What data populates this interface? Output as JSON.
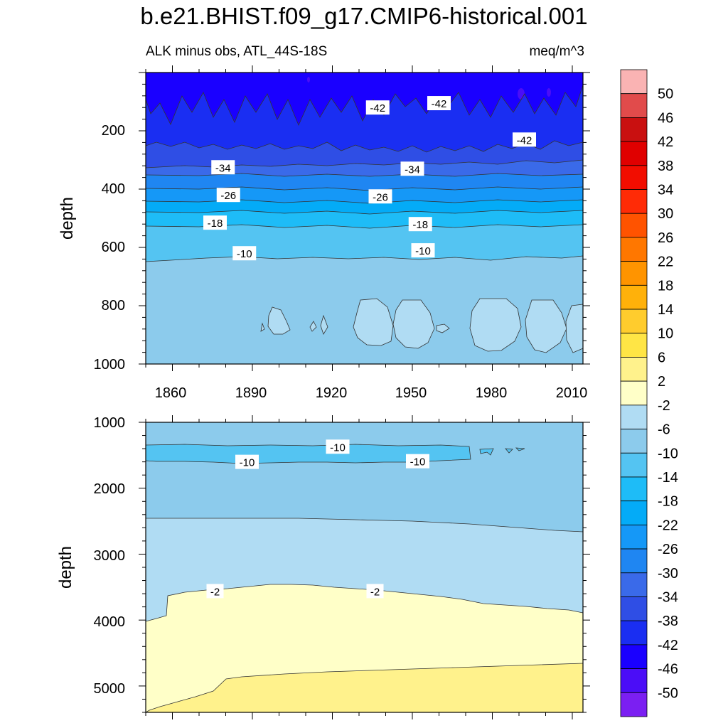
{
  "title": "b.e21.BHIST.f09_g17.CMIP6-historical.001",
  "subtitle_left": "ALK minus obs, ATL_44S-18S",
  "subtitle_right": "meq/m^3",
  "colors": {
    "colorbar": [
      "#7b1ff2",
      "#4b0df7",
      "#1a00ff",
      "#1a2ef2",
      "#2f4ee5",
      "#3a6ae9",
      "#1f86f2",
      "#1598f7",
      "#04abf7",
      "#1ebcf7",
      "#54c4f2",
      "#8ccbec",
      "#b0dcf3",
      "#ffffc8",
      "#fff28c",
      "#ffe545",
      "#ffcc2d",
      "#ffb10a",
      "#ff9400",
      "#ff7700",
      "#ff5300",
      "#ff2b06",
      "#f20d00",
      "#e00000",
      "#c91010",
      "#e14b4b",
      "#fab3b3"
    ],
    "contour_line": "#333333"
  },
  "chart_data": {
    "type": "heatmap",
    "title": "b.e21.BHIST.f09_g17.CMIP6-historical.001",
    "field": "ALK minus obs, ATL_44S-18S",
    "units": "meq/m^3",
    "colorbar_levels": [
      "50",
      "46",
      "42",
      "38",
      "34",
      "30",
      "26",
      "22",
      "18",
      "14",
      "10",
      "6",
      "2",
      "-2",
      "-6",
      "-10",
      "-14",
      "-18",
      "-22",
      "-26",
      "-30",
      "-34",
      "-38",
      "-42",
      "-46",
      "-50"
    ],
    "panels": [
      {
        "name": "upper",
        "ylabel": "depth",
        "xlim": [
          1850,
          2014
        ],
        "ylim": [
          0,
          1000
        ],
        "x_ticks": [
          "1860",
          "1890",
          "1920",
          "1950",
          "1980",
          "2010"
        ],
        "y_ticks": [
          "200",
          "400",
          "600",
          "800",
          "1000"
        ],
        "contour_labels": [
          {
            "text": "-42",
            "x": 1937,
            "y": 120
          },
          {
            "text": "-42",
            "x": 1960,
            "y": 105
          },
          {
            "text": "-42",
            "x": 1992,
            "y": 230
          },
          {
            "text": "-34",
            "x": 1879,
            "y": 325
          },
          {
            "text": "-34",
            "x": 1950,
            "y": 330
          },
          {
            "text": "-26",
            "x": 1881,
            "y": 420
          },
          {
            "text": "-26",
            "x": 1938,
            "y": 425
          },
          {
            "text": "-18",
            "x": 1876,
            "y": 515
          },
          {
            "text": "-18",
            "x": 1953,
            "y": 520
          },
          {
            "text": "-10",
            "x": 1887,
            "y": 620
          },
          {
            "text": "-10",
            "x": 1954,
            "y": 610
          }
        ],
        "layers": [
          {
            "range": "-46 to -42",
            "depth_top": 0,
            "depth_bottom": 190
          },
          {
            "range": "-42 to -38",
            "depth_top": 190,
            "depth_bottom": 290
          },
          {
            "range": "-38 to -34",
            "depth_top": 290,
            "depth_bottom": 340
          },
          {
            "range": "-34 to -30",
            "depth_top": 340,
            "depth_bottom": 385
          },
          {
            "range": "-30 to -26",
            "depth_top": 385,
            "depth_bottom": 430
          },
          {
            "range": "-26 to -22",
            "depth_top": 430,
            "depth_bottom": 475
          },
          {
            "range": "-22 to -18",
            "depth_top": 475,
            "depth_bottom": 520
          },
          {
            "range": "-18 to -14",
            "depth_top": 520,
            "depth_bottom": 565
          },
          {
            "range": "-14 to -10",
            "depth_top": 565,
            "depth_bottom": 640
          },
          {
            "range": "-10 to -6",
            "depth_top": 640,
            "depth_bottom": 1000
          }
        ]
      },
      {
        "name": "lower",
        "ylabel": "depth",
        "xlim": [
          1850,
          2014
        ],
        "ylim": [
          1000,
          5400
        ],
        "y_ticks": [
          "1000",
          "2000",
          "3000",
          "4000",
          "5000"
        ],
        "contour_labels": [
          {
            "text": "-10",
            "x": 1922,
            "y": 1370
          },
          {
            "text": "-10",
            "x": 1888,
            "y": 1600
          },
          {
            "text": "-10",
            "x": 1952,
            "y": 1590
          },
          {
            "text": "-2",
            "x": 1876,
            "y": 3560
          },
          {
            "text": "-2",
            "x": 1936,
            "y": 3560
          }
        ],
        "layers": [
          {
            "range": "-10 to -6",
            "depth_top": 1000,
            "depth_bottom": 2450
          },
          {
            "range": "-14 to -10",
            "depth_top": 1350,
            "depth_bottom": 1580
          },
          {
            "range": "-6 to -2",
            "depth_top": 2450,
            "depth_bottom": 3600
          },
          {
            "range": "-2 to 2",
            "depth_top": 3600,
            "depth_bottom": 4800
          },
          {
            "range": "2 to 6",
            "depth_top": 4800,
            "depth_bottom": 5400
          }
        ]
      }
    ]
  }
}
